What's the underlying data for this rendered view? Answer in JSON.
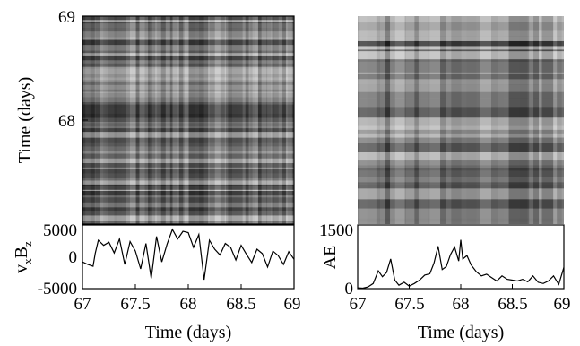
{
  "chart_data": [
    {
      "type": "heatmap",
      "description_of_marks": "recurrence plot of vx·Bz, grayscale",
      "xlim": [
        67,
        69
      ],
      "ylim": [
        67,
        69
      ],
      "y_ticks": [
        68,
        69
      ],
      "ylabel": "Time (days)",
      "colormap": "grayscale"
    },
    {
      "type": "line",
      "xlim": [
        67,
        69
      ],
      "ylim": [
        -5000,
        5000
      ],
      "x_ticks": [
        "67",
        "67.5",
        "68",
        "68.5",
        "69"
      ],
      "y_ticks": [
        "5000",
        "0",
        "-5000"
      ],
      "xlabel": "Time (days)",
      "ylabel_main": "v",
      "ylabel_sub1": "x",
      "ylabel_mid": "B",
      "ylabel_sub2": "z",
      "series": [
        {
          "x": [
            67.0,
            67.05,
            67.1,
            67.12,
            67.15,
            67.2,
            67.25,
            67.3,
            67.35,
            67.4,
            67.45,
            67.5,
            67.55,
            67.6,
            67.65,
            67.7,
            67.75,
            67.8,
            67.85,
            67.9,
            67.95,
            68.0,
            68.05,
            68.1,
            68.15,
            68.2,
            68.25,
            68.3,
            68.35,
            68.4,
            68.45,
            68.5,
            68.55,
            68.6,
            68.65,
            68.7,
            68.75,
            68.8,
            68.85,
            68.9,
            68.95,
            69.0
          ],
          "y": [
            -800,
            -1200,
            -1500,
            500,
            2600,
            1800,
            2300,
            600,
            2800,
            -1200,
            2400,
            900,
            -1900,
            2100,
            -3400,
            3200,
            -800,
            2000,
            4300,
            2800,
            4000,
            3800,
            1500,
            3500,
            -3600,
            2600,
            1200,
            300,
            2100,
            1500,
            -500,
            1800,
            400,
            -900,
            1200,
            500,
            -1600,
            900,
            200,
            -1200,
            800,
            -400
          ]
        }
      ]
    },
    {
      "type": "heatmap",
      "description_of_marks": "recurrence plot of AE, grayscale",
      "xlim": [
        67,
        69
      ],
      "ylim": [
        67,
        69
      ],
      "colormap": "grayscale"
    },
    {
      "type": "line",
      "xlim": [
        67,
        69
      ],
      "ylim": [
        0,
        1500
      ],
      "x_ticks": [
        "67",
        "67.5",
        "68",
        "68.5",
        "69"
      ],
      "y_ticks": [
        "1500",
        "0"
      ],
      "xlabel": "Time (days)",
      "ylabel": "AE",
      "series": [
        {
          "x": [
            67.0,
            67.05,
            67.1,
            67.15,
            67.2,
            67.24,
            67.28,
            67.32,
            67.36,
            67.4,
            67.45,
            67.5,
            67.55,
            67.6,
            67.65,
            67.7,
            67.74,
            67.78,
            67.82,
            67.86,
            67.9,
            67.94,
            67.98,
            68.0,
            68.02,
            68.06,
            68.1,
            68.15,
            68.2,
            68.25,
            68.3,
            68.35,
            68.4,
            68.45,
            68.5,
            68.55,
            68.6,
            68.65,
            68.7,
            68.75,
            68.8,
            68.85,
            68.9,
            68.95,
            69.0
          ],
          "y": [
            20,
            10,
            40,
            120,
            420,
            280,
            380,
            700,
            200,
            80,
            150,
            60,
            120,
            200,
            320,
            350,
            600,
            1000,
            450,
            520,
            800,
            980,
            650,
            1150,
            700,
            780,
            560,
            400,
            300,
            340,
            260,
            180,
            300,
            220,
            200,
            180,
            220,
            160,
            300,
            150,
            120,
            180,
            300,
            100,
            500
          ]
        }
      ]
    }
  ]
}
